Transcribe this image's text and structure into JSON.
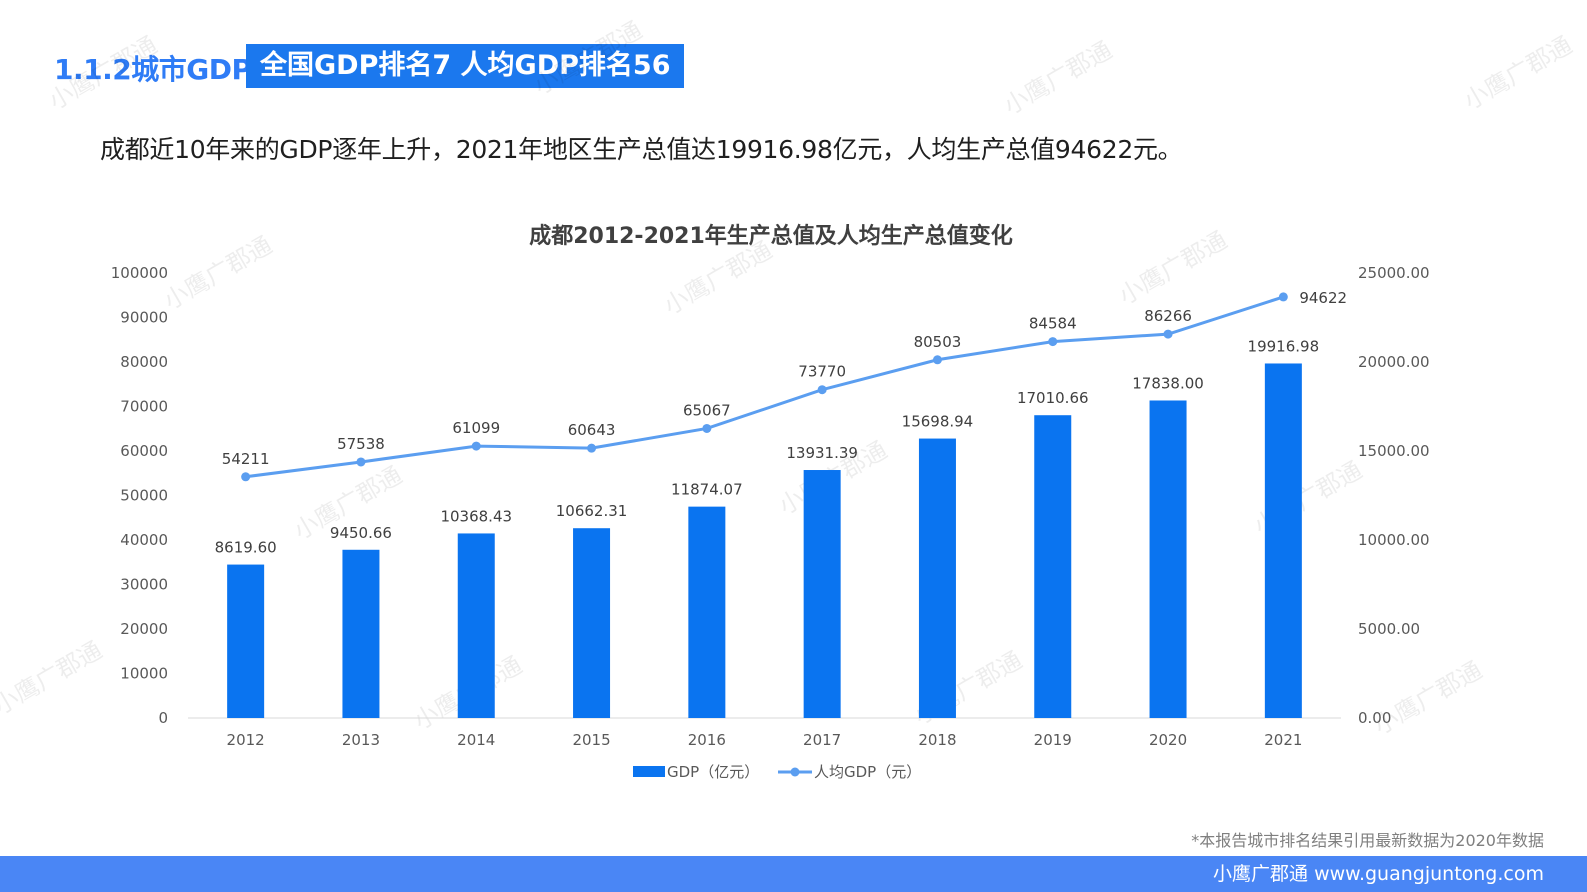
{
  "header": {
    "section_title": "1.1.2城市GDP",
    "badge": "全国GDP排名7 人均GDP排名56"
  },
  "summary": "成都近10年来的GDP逐年上升，2021年地区生产总值达19916.98亿元，人均生产总值94622元。",
  "chart_data": {
    "type": "bar",
    "title": "成都2012-2021年生产总值及人均生产总值变化",
    "categories": [
      "2012",
      "2013",
      "2014",
      "2015",
      "2016",
      "2017",
      "2018",
      "2019",
      "2020",
      "2021"
    ],
    "series": [
      {
        "name": "GDP（亿元）",
        "type": "bar",
        "axis": "right",
        "color": "#0a74f0",
        "values": [
          8619.6,
          9450.66,
          10368.43,
          10662.31,
          11874.07,
          13931.39,
          15698.94,
          17010.66,
          17838.0,
          19916.98
        ],
        "labels": [
          "8619.60",
          "9450.66",
          "10368.43",
          "10662.31",
          "11874.07",
          "13931.39",
          "15698.94",
          "17010.66",
          "17838.00",
          "19916.98"
        ]
      },
      {
        "name": "人均GDP（元）",
        "type": "line",
        "axis": "left",
        "color": "#5b9ef0",
        "values": [
          54211,
          57538,
          61099,
          60643,
          65067,
          73770,
          80503,
          84584,
          86266,
          94622
        ],
        "labels": [
          "54211",
          "57538",
          "61099",
          "60643",
          "65067",
          "73770",
          "80503",
          "84584",
          "86266",
          "94622"
        ]
      }
    ],
    "left_axis": {
      "ylim": [
        0,
        100000
      ],
      "ticks": [
        "0",
        "10000",
        "20000",
        "30000",
        "40000",
        "50000",
        "60000",
        "70000",
        "80000",
        "90000",
        "100000"
      ]
    },
    "right_axis": {
      "ylim": [
        0,
        25000
      ],
      "ticks": [
        "0.00",
        "5000.00",
        "10000.00",
        "15000.00",
        "20000.00",
        "25000.00"
      ]
    },
    "grid": false,
    "legend": "bottom-center"
  },
  "footer": {
    "note": "*本报告城市排名结果引用最新数据为2020年数据",
    "brand": "小鹰广郡通 www.guangjuntong.com"
  },
  "watermark": "小鹰广郡通"
}
